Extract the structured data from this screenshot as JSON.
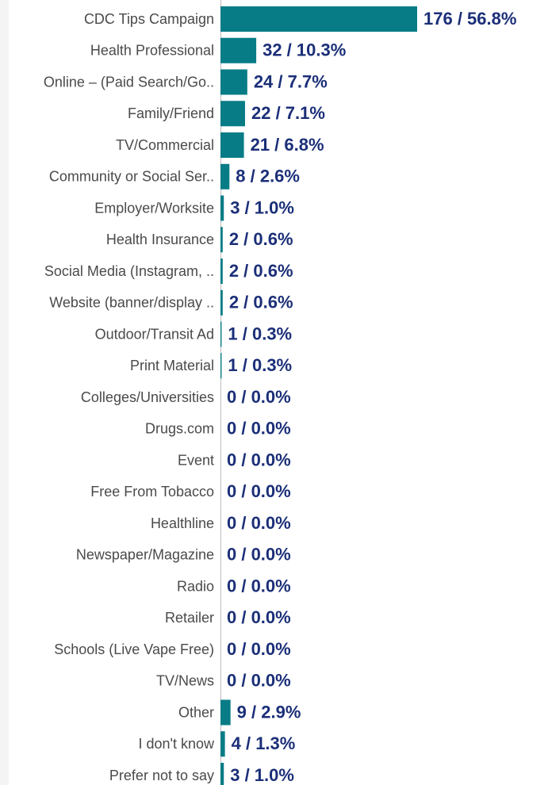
{
  "chart_data": {
    "type": "bar",
    "orientation": "horizontal",
    "color": "#077c86",
    "categories": [
      "CDC Tips Campaign",
      "Health Professional",
      "Online – (Paid Search/Go..",
      "Family/Friend",
      "TV/Commercial",
      "Community or Social Ser..",
      "Employer/Worksite",
      "Health Insurance",
      "Social Media (Instagram, ..",
      "Website (banner/display ..",
      "Outdoor/Transit Ad",
      "Print Material",
      "Colleges/Universities",
      "Drugs.com",
      "Event",
      "Free From Tobacco",
      "Healthline",
      "Newspaper/Magazine",
      "Radio",
      "Retailer",
      "Schools (Live Vape Free)",
      "TV/News",
      "Other",
      "I don't know",
      "Prefer not to say"
    ],
    "values": [
      176,
      32,
      24,
      22,
      21,
      8,
      3,
      2,
      2,
      2,
      1,
      1,
      0,
      0,
      0,
      0,
      0,
      0,
      0,
      0,
      0,
      0,
      9,
      4,
      3
    ],
    "value_labels": [
      "176 / 56.8%",
      "32 / 10.3%",
      "24 / 7.7%",
      "22 / 7.1%",
      "21 / 6.8%",
      "8 / 2.6%",
      "3 / 1.0%",
      "2 / 0.6%",
      "2 / 0.6%",
      "2 / 0.6%",
      "1 / 0.3%",
      "1 / 0.3%",
      "0 / 0.0%",
      "0 / 0.0%",
      "0 / 0.0%",
      "0 / 0.0%",
      "0 / 0.0%",
      "0 / 0.0%",
      "0 / 0.0%",
      "0 / 0.0%",
      "0 / 0.0%",
      "0 / 0.0%",
      "9 / 2.9%",
      "4 / 1.3%",
      "3 / 1.0%"
    ]
  }
}
